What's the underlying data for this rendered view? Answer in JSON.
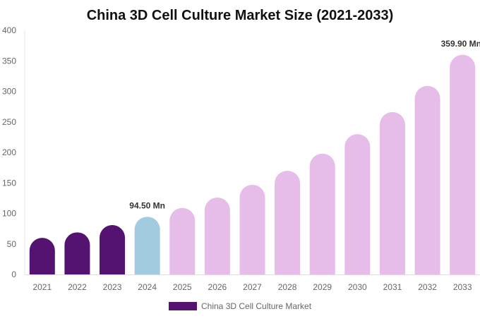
{
  "chart_data": {
    "type": "bar",
    "title": "China 3D Cell Culture Market Size (2021-2033)",
    "xlabel": "",
    "ylabel": "",
    "ylim": [
      0,
      400
    ],
    "yticks": [
      0,
      50,
      100,
      150,
      200,
      250,
      300,
      350,
      400
    ],
    "grid": false,
    "legend_position": "bottom",
    "categories": [
      "2021",
      "2022",
      "2023",
      "2024",
      "2025",
      "2026",
      "2027",
      "2028",
      "2029",
      "2030",
      "2031",
      "2032",
      "2033"
    ],
    "series": [
      {
        "name": "China 3D Cell Culture Market",
        "values": [
          60,
          69,
          81,
          94.5,
          109,
          126,
          147,
          170,
          198,
          230,
          266,
          309,
          359.9
        ],
        "colors": [
          "#541370",
          "#541370",
          "#541370",
          "#a3cbe0",
          "#e6bde9",
          "#e6bde9",
          "#e6bde9",
          "#e6bde9",
          "#e6bde9",
          "#e6bde9",
          "#e6bde9",
          "#e6bde9",
          "#e6bde9"
        ]
      }
    ],
    "data_labels": [
      {
        "category": "2024",
        "text": "94.50 Mn"
      },
      {
        "category": "2033",
        "text": "359.90 Mn"
      }
    ],
    "legend_color": "#541370"
  }
}
